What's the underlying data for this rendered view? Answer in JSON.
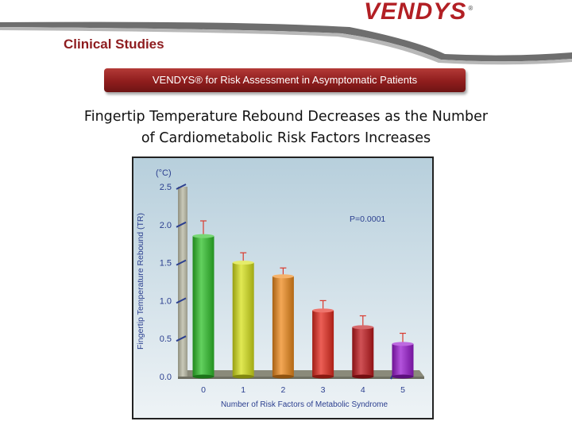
{
  "brand": {
    "name": "VENDYS",
    "mark": "®"
  },
  "section_title": "Clinical Studies",
  "banner": "VENDYS® for Risk Assessment in Asymptomatic Patients",
  "title_lines": [
    "Fingertip Temperature Rebound Decreases as the Number",
    "of Cardiometabolic Risk Factors Increases"
  ],
  "chart_data": {
    "type": "bar",
    "title": "Fingertip Temperature Rebound Decreases as the Number of Cardiometabolic Risk Factors Increases",
    "unit_label": "(°C)",
    "ylabel": "Fingertip Temperature Rebound (TR)",
    "xlabel": "Number of Risk Factors of Metabolic Syndrome",
    "annotation": "P=0.0001",
    "categories": [
      "0",
      "1",
      "2",
      "3",
      "4",
      "5"
    ],
    "values": [
      1.85,
      1.5,
      1.32,
      0.87,
      0.65,
      0.43
    ],
    "error_upper": [
      2.05,
      1.63,
      1.43,
      1.0,
      0.8,
      0.57
    ],
    "yticks": [
      "0.0",
      "0.5",
      "1.0",
      "1.5",
      "2.0",
      "2.5"
    ],
    "ylim": [
      0,
      2.5
    ],
    "grid": false,
    "colors": [
      "#2fc12a",
      "#d7e21a",
      "#ef8a1c",
      "#e52a1e",
      "#c0181c",
      "#9a1ad0"
    ]
  }
}
